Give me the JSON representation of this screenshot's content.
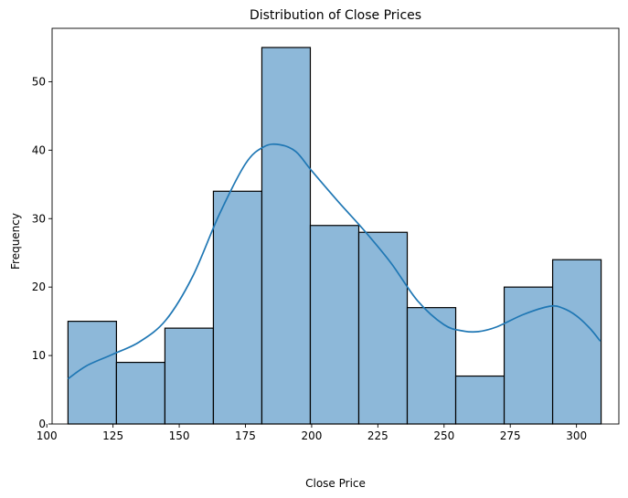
{
  "chart_data": {
    "type": "bar",
    "title": "Distribution of Close Prices",
    "xlabel": "Close Price",
    "ylabel": "Frequency",
    "xlim": [
      102,
      316
    ],
    "ylim": [
      0,
      57.8
    ],
    "grid": false,
    "bar_color": "#8db8d9",
    "bar_edge_color": "#000000",
    "kde_color": "#1f77b4",
    "x_ticks": [
      100,
      125,
      150,
      175,
      200,
      225,
      250,
      275,
      300
    ],
    "y_ticks": [
      0,
      10,
      20,
      30,
      40,
      50
    ],
    "bins": [
      {
        "x0": 108.0,
        "x1": 126.3,
        "count": 15
      },
      {
        "x0": 126.3,
        "x1": 144.6,
        "count": 9
      },
      {
        "x0": 144.6,
        "x1": 162.9,
        "count": 14
      },
      {
        "x0": 162.9,
        "x1": 181.2,
        "count": 34
      },
      {
        "x0": 181.2,
        "x1": 199.5,
        "count": 55
      },
      {
        "x0": 199.5,
        "x1": 217.8,
        "count": 29
      },
      {
        "x0": 217.8,
        "x1": 236.1,
        "count": 28
      },
      {
        "x0": 236.1,
        "x1": 254.4,
        "count": 17
      },
      {
        "x0": 254.4,
        "x1": 272.7,
        "count": 7
      },
      {
        "x0": 272.7,
        "x1": 291.0,
        "count": 20
      },
      {
        "x0": 291.0,
        "x1": 309.3,
        "count": 24
      }
    ],
    "kde_series": {
      "x": [
        108,
        115,
        125,
        135,
        145,
        155,
        165,
        175,
        182,
        188,
        194,
        200,
        210,
        220,
        230,
        240,
        250,
        257,
        263,
        270,
        280,
        290,
        295,
        300,
        305,
        309
      ],
      "y": [
        6.6,
        8.5,
        10.2,
        12.0,
        15.2,
        21.5,
        30.5,
        38.0,
        40.5,
        40.8,
        39.8,
        37.0,
        32.5,
        28.2,
        23.5,
        18.0,
        14.5,
        13.6,
        13.5,
        14.2,
        16.0,
        17.2,
        16.9,
        15.8,
        14.0,
        12.1
      ]
    }
  }
}
